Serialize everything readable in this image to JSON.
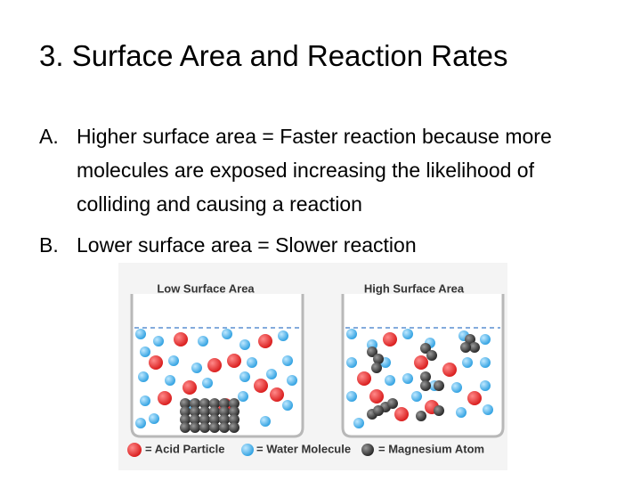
{
  "title": "3. Surface Area and Reaction Rates",
  "items": [
    {
      "marker": "A.",
      "text": "Higher surface area = Faster reaction because more molecules are exposed increasing the likelihood of colliding and causing a reaction"
    },
    {
      "marker": "B.",
      "text": "Lower surface area = Slower reaction"
    }
  ],
  "figure": {
    "beakers": [
      "Low Surface Area",
      "High Surface Area"
    ],
    "legend": [
      "= Acid Particle",
      "= Water Molecule",
      "= Magnesium Atom"
    ]
  }
}
